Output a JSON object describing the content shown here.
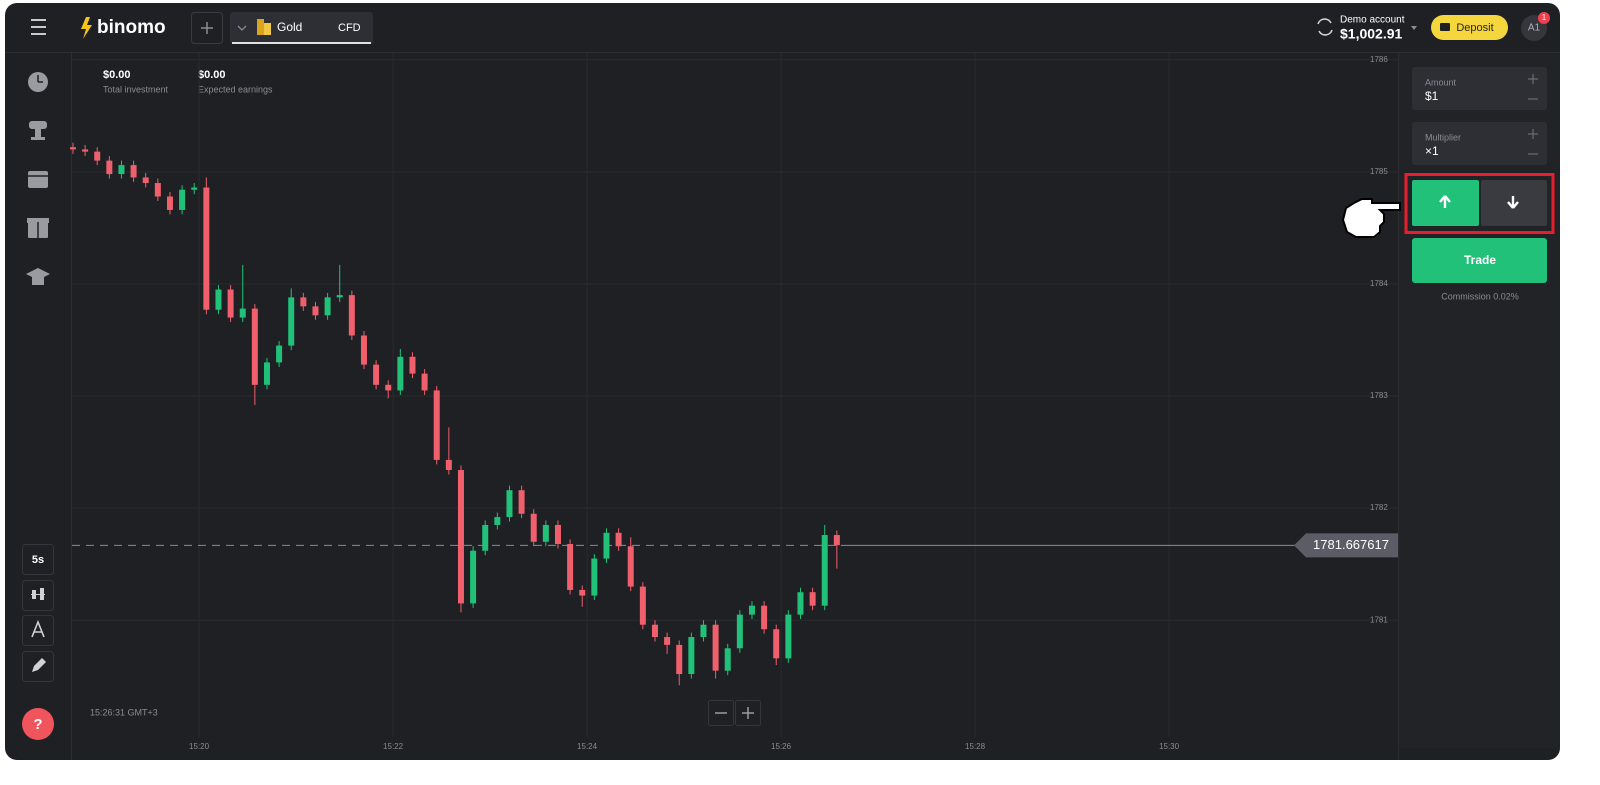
{
  "header": {
    "logo": "binomo",
    "asset": "Gold",
    "asset_type": "CFD",
    "account_label": "Demo account",
    "balance": "$1,002.91",
    "deposit": "Deposit",
    "avatar": "A1",
    "notification_count": "1"
  },
  "sidebar": {
    "items": [
      "History",
      "Tournaments",
      "Calendar",
      "Gifts",
      "Education"
    ],
    "timeframe": "5s",
    "help": "?"
  },
  "stats": [
    {
      "value": "$0.00",
      "label": "Total investment"
    },
    {
      "value": "$0.00",
      "label": "Expected earnings"
    }
  ],
  "clock": "15:26:31 GMT+3",
  "trade_panel": {
    "amount_label": "Amount",
    "amount": "$1",
    "multiplier_label": "Multiplier",
    "multiplier": "×1",
    "trade": "Trade",
    "commission": "Commission 0.02%"
  },
  "chart_data": {
    "type": "candlestick",
    "up_color": "#21c17a",
    "down_color": "#ef5f6c",
    "grid": true,
    "x": [
      18.7,
      18.825,
      18.95,
      19.075,
      19.2,
      19.325,
      19.45,
      19.575,
      19.7,
      19.825,
      19.95,
      20.075,
      20.2,
      20.325,
      20.45,
      20.575,
      20.7,
      20.825,
      20.95,
      21.075,
      21.2,
      21.325,
      21.45,
      21.575,
      21.7,
      21.825,
      21.95,
      22.075,
      22.2,
      22.325,
      22.45,
      22.575,
      22.7,
      22.825,
      22.95,
      23.075,
      23.2,
      23.325,
      23.45,
      23.575,
      23.7,
      23.825,
      23.95,
      24.075,
      24.2,
      24.325,
      24.45,
      24.575,
      24.7,
      24.825,
      24.95,
      25.075,
      25.2,
      25.325,
      25.45,
      25.575,
      25.7,
      25.825,
      25.95,
      26.075,
      26.2,
      26.325,
      26.45,
      26.575
    ],
    "open": [
      1785.22,
      1785.2,
      1785.18,
      1785.1,
      1784.98,
      1785.06,
      1784.95,
      1784.9,
      1784.78,
      1784.66,
      1784.84,
      1784.86,
      1783.77,
      1783.95,
      1783.7,
      1783.78,
      1783.1,
      1783.3,
      1783.45,
      1783.88,
      1783.8,
      1783.72,
      1783.88,
      1783.9,
      1783.54,
      1783.28,
      1783.1,
      1783.05,
      1783.35,
      1783.2,
      1783.05,
      1782.43,
      1782.34,
      1781.15,
      1781.62,
      1781.85,
      1781.92,
      1782.16,
      1781.95,
      1781.7,
      1781.85,
      1781.68,
      1781.27,
      1781.22,
      1781.55,
      1781.78,
      1781.66,
      1781.3,
      1780.96,
      1780.85,
      1780.78,
      1780.52,
      1780.85,
      1780.96,
      1780.55,
      1780.75,
      1781.05,
      1781.13,
      1780.92,
      1780.66,
      1781.05,
      1781.25,
      1781.13,
      1781.76
    ],
    "high": [
      1785.26,
      1785.24,
      1785.22,
      1785.14,
      1785.1,
      1785.1,
      1784.99,
      1784.94,
      1784.82,
      1784.88,
      1784.9,
      1784.95,
      1783.99,
      1783.99,
      1784.17,
      1783.82,
      1783.34,
      1783.49,
      1783.96,
      1783.92,
      1783.84,
      1783.92,
      1784.17,
      1783.94,
      1783.58,
      1783.32,
      1783.14,
      1783.42,
      1783.39,
      1783.24,
      1783.09,
      1782.72,
      1782.38,
      1781.66,
      1781.89,
      1781.96,
      1782.2,
      1782.2,
      1781.99,
      1781.89,
      1781.89,
      1781.72,
      1781.31,
      1781.59,
      1781.82,
      1781.82,
      1781.74,
      1781.34,
      1781.0,
      1780.89,
      1780.82,
      1780.89,
      1781.0,
      1781.0,
      1780.79,
      1781.09,
      1781.17,
      1781.17,
      1780.96,
      1781.09,
      1781.29,
      1781.29,
      1781.85,
      1781.8
    ],
    "low": [
      1785.16,
      1785.14,
      1785.06,
      1784.94,
      1784.94,
      1784.91,
      1784.86,
      1784.74,
      1784.62,
      1784.62,
      1784.8,
      1783.73,
      1783.73,
      1783.66,
      1783.66,
      1782.92,
      1783.06,
      1783.26,
      1783.41,
      1783.76,
      1783.68,
      1783.68,
      1783.84,
      1783.5,
      1783.24,
      1783.06,
      1782.98,
      1783.01,
      1783.16,
      1783.01,
      1782.39,
      1782.3,
      1781.07,
      1781.11,
      1781.58,
      1781.81,
      1781.88,
      1781.91,
      1781.66,
      1781.66,
      1781.64,
      1781.23,
      1781.12,
      1781.18,
      1781.51,
      1781.62,
      1781.26,
      1780.92,
      1780.81,
      1780.7,
      1780.42,
      1780.48,
      1780.81,
      1780.48,
      1780.51,
      1780.71,
      1781.01,
      1780.88,
      1780.6,
      1780.62,
      1781.01,
      1781.09,
      1781.09,
      1781.46
    ],
    "close": [
      1785.2,
      1785.18,
      1785.1,
      1784.98,
      1785.06,
      1784.95,
      1784.9,
      1784.78,
      1784.66,
      1784.84,
      1784.86,
      1783.77,
      1783.95,
      1783.7,
      1783.78,
      1783.1,
      1783.3,
      1783.45,
      1783.88,
      1783.8,
      1783.72,
      1783.88,
      1783.9,
      1783.54,
      1783.28,
      1783.1,
      1783.05,
      1783.35,
      1783.2,
      1783.05,
      1782.43,
      1782.34,
      1781.15,
      1781.62,
      1781.85,
      1781.92,
      1782.16,
      1781.95,
      1781.7,
      1781.85,
      1781.68,
      1781.27,
      1781.22,
      1781.55,
      1781.78,
      1781.66,
      1781.3,
      1780.96,
      1780.85,
      1780.78,
      1780.52,
      1780.85,
      1780.96,
      1780.55,
      1780.75,
      1781.05,
      1781.13,
      1780.92,
      1780.66,
      1781.05,
      1781.25,
      1781.13,
      1781.76,
      1781.67
    ],
    "current_price": 1781.667617,
    "ylim": [
      1779.78,
      1786.06
    ],
    "yticks": [
      1781,
      1782,
      1783,
      1784,
      1785,
      1786
    ],
    "xlim": [
      18.69,
      32.36
    ],
    "xticks": [
      {
        "value": 20,
        "label": "15:20"
      },
      {
        "value": 22,
        "label": "15:22"
      },
      {
        "value": 24,
        "label": "15:24"
      },
      {
        "value": 26,
        "label": "15:26"
      },
      {
        "value": 28,
        "label": "15:28"
      },
      {
        "value": 30,
        "label": "15:30"
      }
    ]
  }
}
